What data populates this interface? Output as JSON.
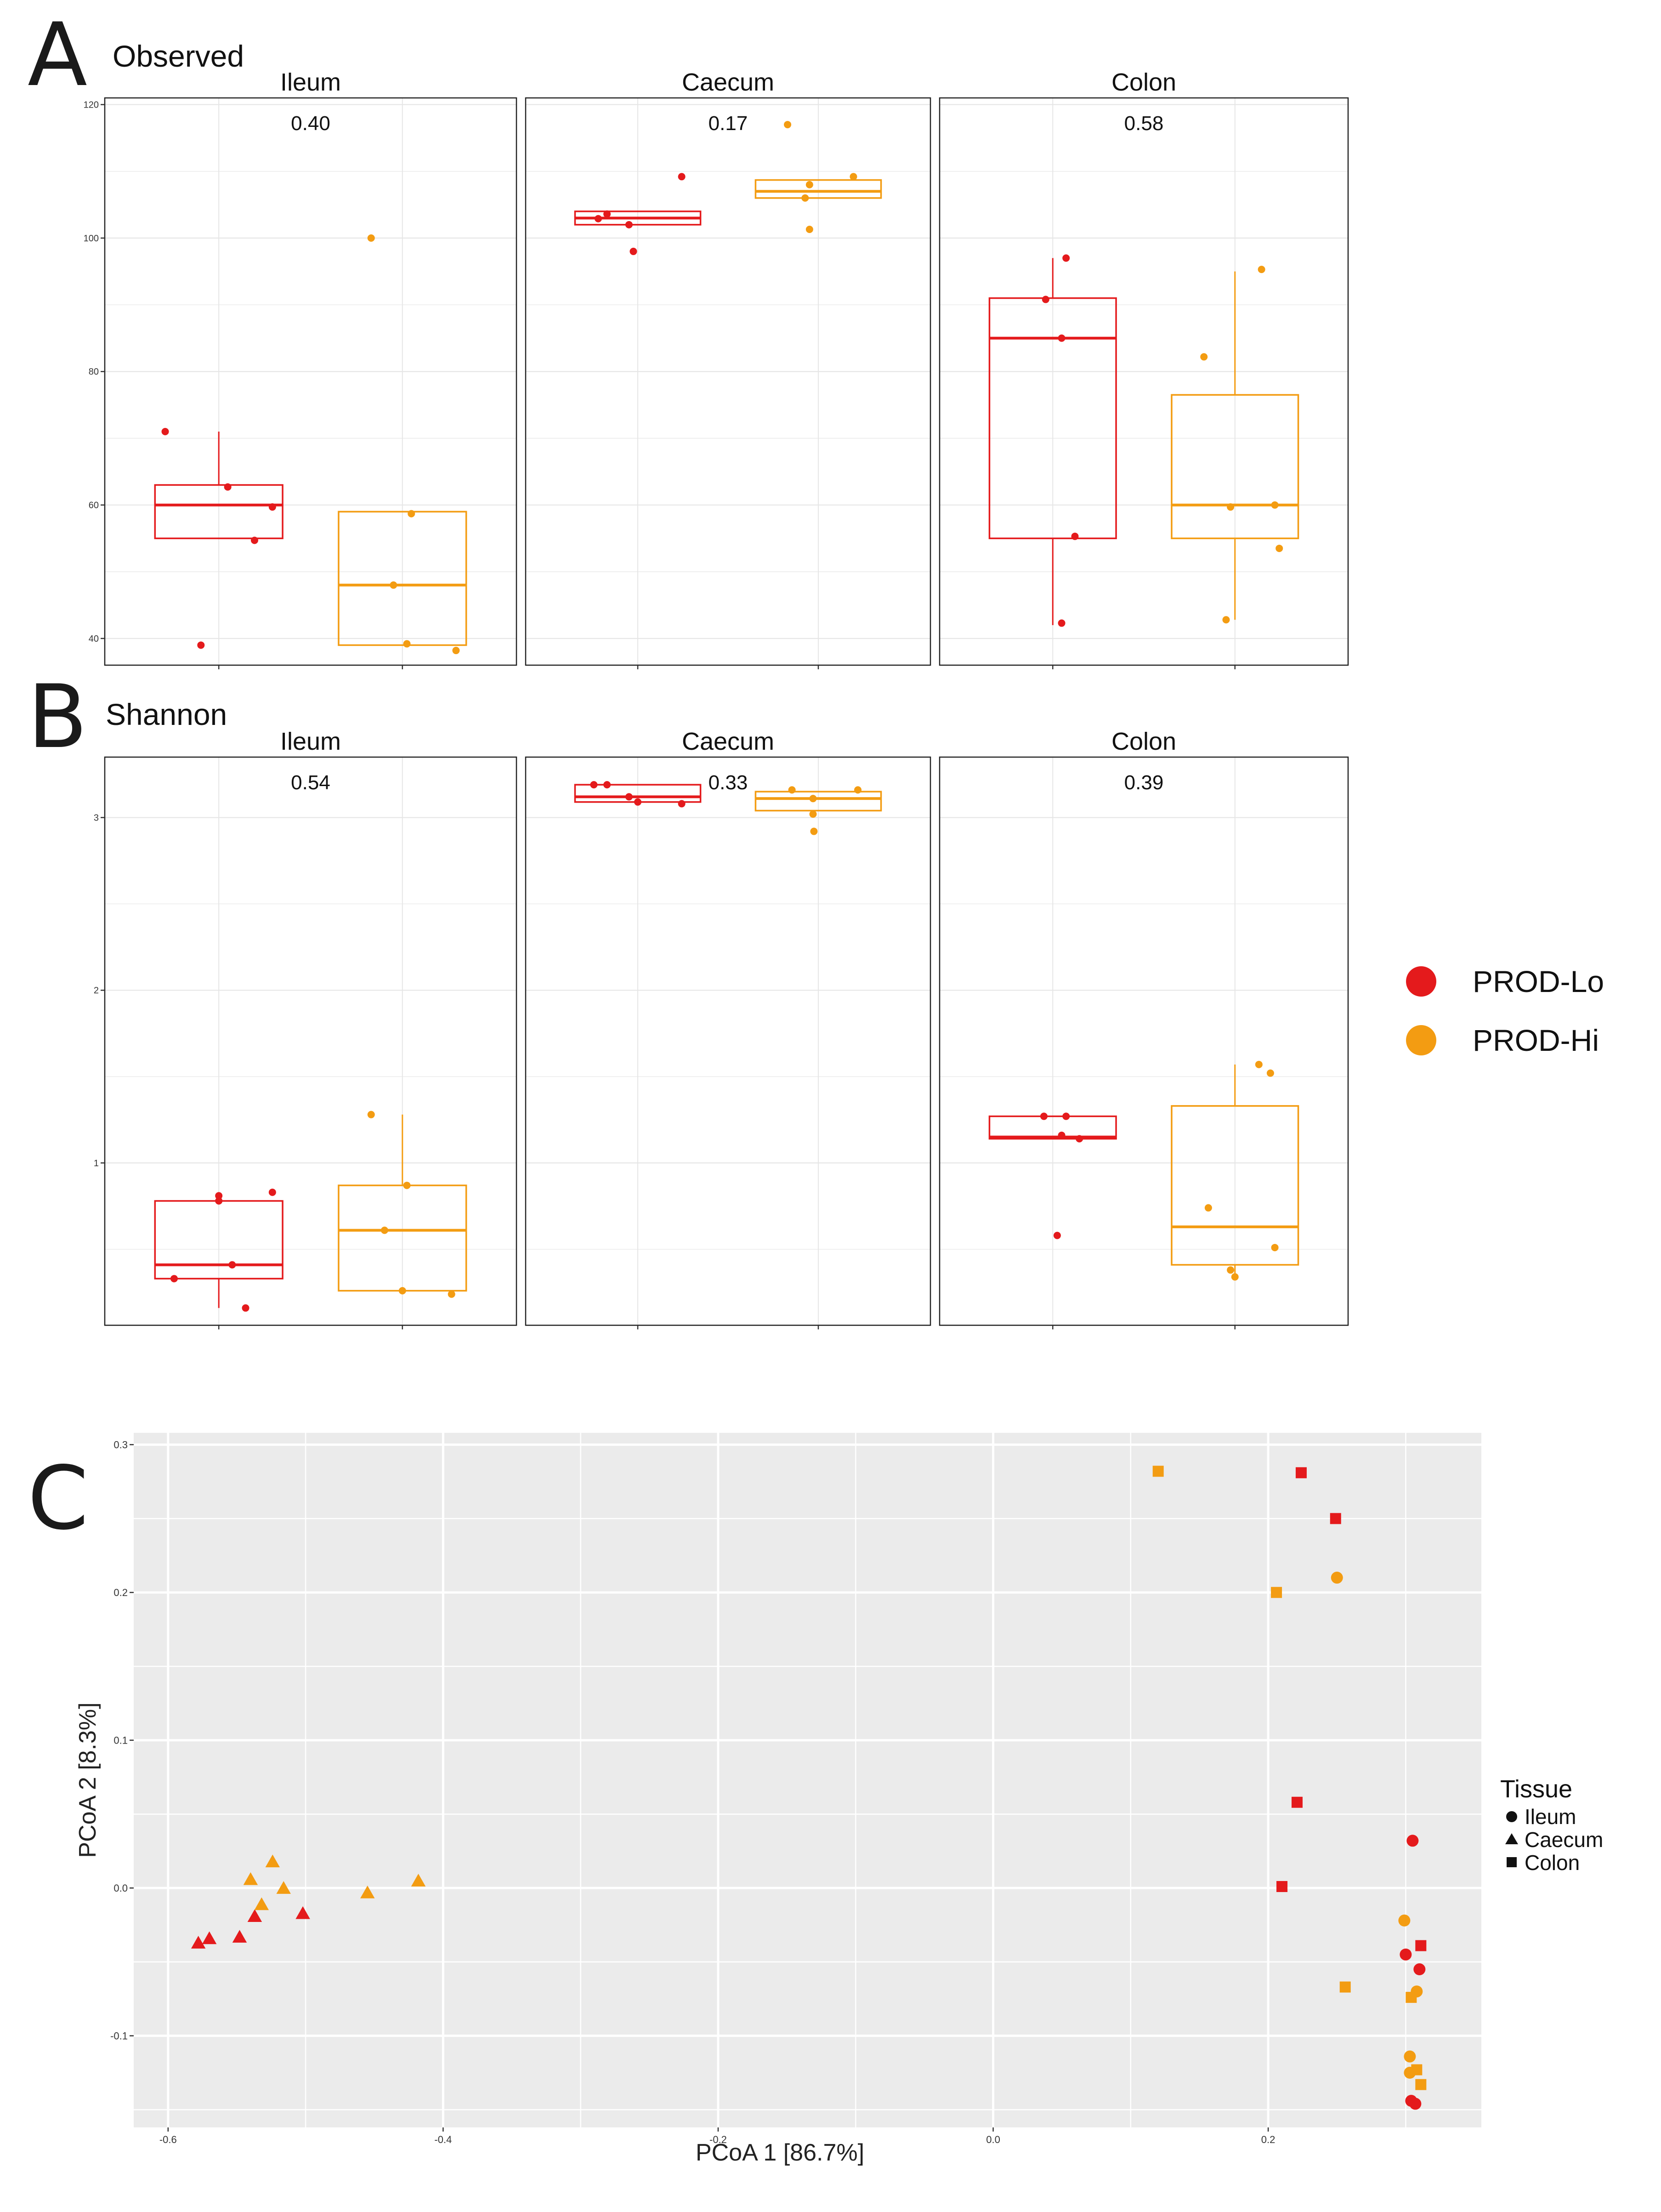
{
  "colors": {
    "lo": "#e41a1c",
    "hi": "#f39c12",
    "panel_bg": "#ebebeb",
    "grid": "#e6e6e6"
  },
  "panel_labels": {
    "a": "A",
    "b": "B",
    "c": "C"
  },
  "legend_groups": {
    "lo": "PROD-Lo",
    "hi": "PROD-Hi"
  },
  "legend_tissue": {
    "title": "Tissue",
    "ileum": "Ileum",
    "caecum": "Caecum",
    "colon": "Colon"
  },
  "chart_data": [
    {
      "type": "box",
      "id": "A",
      "title": "Observed",
      "facets": [
        "Ileum",
        "Caecum",
        "Colon"
      ],
      "pvalues": [
        "0.40",
        "0.17",
        "0.58"
      ],
      "groups": [
        "PROD-Lo",
        "PROD-Hi"
      ],
      "ylim": [
        36,
        121
      ],
      "yticks": [
        40,
        60,
        80,
        100,
        120
      ],
      "boxes": [
        [
          {
            "q1": 55,
            "median": 60,
            "q3": 63,
            "wlo": 55,
            "whi": 71,
            "points": [
              71,
              62.7,
              59.7,
              54.7,
              39
            ]
          },
          {
            "q1": 39,
            "median": 48,
            "q3": 59,
            "wlo": 39,
            "whi": 59,
            "points": [
              100,
              58.7,
              48,
              39.2,
              38.2
            ]
          }
        ],
        [
          {
            "q1": 102,
            "median": 103,
            "q3": 104,
            "wlo": 102,
            "whi": 104,
            "points": [
              109.2,
              103.6,
              102.9,
              102,
              98
            ]
          },
          {
            "q1": 106,
            "median": 107,
            "q3": 108.7,
            "wlo": 106,
            "whi": 108.7,
            "points": [
              117,
              109.2,
              108,
              106,
              101.3
            ]
          }
        ],
        [
          {
            "q1": 55,
            "median": 85,
            "q3": 91,
            "wlo": 42,
            "whi": 97,
            "points": [
              97,
              90.8,
              85,
              55.3,
              42.3
            ]
          },
          {
            "q1": 55,
            "median": 60,
            "q3": 76.5,
            "wlo": 42.8,
            "whi": 95,
            "points": [
              95.3,
              82.2,
              60,
              59.7,
              53.5,
              42.8
            ]
          }
        ]
      ],
      "point_dx": [
        [
          [
            -0.6,
            0.1,
            0.6,
            0.4,
            -0.2
          ],
          [
            -0.35,
            0.1,
            -0.1,
            0.05,
            0.6
          ]
        ],
        [
          [
            0.5,
            -0.35,
            -0.45,
            -0.1,
            -0.05
          ],
          [
            -0.35,
            0.4,
            -0.1,
            -0.15,
            -0.1
          ]
        ],
        [
          [
            0.15,
            -0.08,
            0.1,
            0.25,
            0.1
          ],
          [
            0.3,
            -0.35,
            0.45,
            -0.05,
            0.5,
            -0.1
          ]
        ]
      ]
    },
    {
      "type": "box",
      "id": "B",
      "title": "Shannon",
      "facets": [
        "Ileum",
        "Caecum",
        "Colon"
      ],
      "pvalues": [
        "0.54",
        "0.33",
        "0.39"
      ],
      "groups": [
        "PROD-Lo",
        "PROD-Hi"
      ],
      "ylim": [
        0.06,
        3.35
      ],
      "yticks": [
        1,
        2,
        3
      ],
      "ytick_labels": [
        "1",
        "2",
        "3"
      ],
      "boxes": [
        [
          {
            "q1": 0.33,
            "median": 0.41,
            "q3": 0.78,
            "wlo": 0.16,
            "whi": 0.82,
            "points": [
              0.83,
              0.81,
              0.78,
              0.41,
              0.33,
              0.16
            ]
          },
          {
            "q1": 0.26,
            "median": 0.61,
            "q3": 0.87,
            "wlo": 0.26,
            "whi": 1.28,
            "points": [
              1.28,
              0.87,
              0.61,
              0.26,
              0.24
            ]
          }
        ],
        [
          {
            "q1": 3.09,
            "median": 3.12,
            "q3": 3.19,
            "wlo": 3.09,
            "whi": 3.19,
            "points": [
              3.19,
              3.19,
              3.12,
              3.09,
              3.08
            ]
          },
          {
            "q1": 3.04,
            "median": 3.11,
            "q3": 3.15,
            "wlo": 3.04,
            "whi": 3.15,
            "points": [
              3.16,
              3.16,
              3.11,
              3.02,
              2.92
            ]
          }
        ],
        [
          {
            "q1": 1.14,
            "median": 1.15,
            "q3": 1.27,
            "wlo": 1.14,
            "whi": 1.27,
            "points": [
              1.27,
              1.27,
              1.16,
              1.14,
              0.58
            ]
          },
          {
            "q1": 0.41,
            "median": 0.63,
            "q3": 1.33,
            "wlo": 0.34,
            "whi": 1.57,
            "points": [
              1.57,
              1.52,
              0.74,
              0.51,
              0.38,
              0.34
            ]
          }
        ]
      ],
      "point_dx": [
        [
          [
            0.6,
            0.0,
            0.0,
            0.15,
            -0.5,
            0.3
          ],
          [
            -0.35,
            0.05,
            -0.2,
            0.0,
            0.55
          ]
        ],
        [
          [
            -0.35,
            -0.5,
            -0.1,
            0.0,
            0.5
          ],
          [
            0.45,
            -0.3,
            -0.06,
            -0.06,
            -0.05
          ]
        ],
        [
          [
            -0.1,
            0.15,
            0.1,
            0.3,
            0.05
          ],
          [
            0.27,
            0.4,
            -0.3,
            0.45,
            -0.05,
            0.0
          ]
        ]
      ]
    },
    {
      "type": "scatter",
      "id": "C",
      "xlabel": "PCoA 1   [86.7%]",
      "ylabel": "PCoA 2   [8.3%]",
      "xlim": [
        -0.625,
        0.355
      ],
      "ylim": [
        -0.162,
        0.308
      ],
      "xticks": [
        -0.6,
        -0.4,
        -0.2,
        0.0,
        0.2
      ],
      "yticks": [
        -0.1,
        0.0,
        0.1,
        0.2,
        0.3
      ],
      "xtick_labels": [
        "-0.6",
        "-0.4",
        "-0.2",
        "0.0",
        "0.2"
      ],
      "ytick_labels": [
        "-0.1",
        "0.0",
        "0.1",
        "0.2",
        "0.3"
      ],
      "points": [
        {
          "x": -0.578,
          "y": -0.037,
          "group": "PROD-Lo",
          "tissue": "Caecum"
        },
        {
          "x": -0.57,
          "y": -0.034,
          "group": "PROD-Lo",
          "tissue": "Caecum"
        },
        {
          "x": -0.548,
          "y": -0.033,
          "group": "PROD-Lo",
          "tissue": "Caecum"
        },
        {
          "x": -0.537,
          "y": -0.019,
          "group": "PROD-Lo",
          "tissue": "Caecum"
        },
        {
          "x": -0.502,
          "y": -0.017,
          "group": "PROD-Lo",
          "tissue": "Caecum"
        },
        {
          "x": -0.54,
          "y": 0.006,
          "group": "PROD-Hi",
          "tissue": "Caecum"
        },
        {
          "x": -0.532,
          "y": -0.011,
          "group": "PROD-Hi",
          "tissue": "Caecum"
        },
        {
          "x": -0.524,
          "y": 0.018,
          "group": "PROD-Hi",
          "tissue": "Caecum"
        },
        {
          "x": -0.516,
          "y": 0.0,
          "group": "PROD-Hi",
          "tissue": "Caecum"
        },
        {
          "x": -0.455,
          "y": -0.003,
          "group": "PROD-Hi",
          "tissue": "Caecum"
        },
        {
          "x": -0.418,
          "y": 0.005,
          "group": "PROD-Hi",
          "tissue": "Caecum"
        },
        {
          "x": 0.12,
          "y": 0.282,
          "group": "PROD-Hi",
          "tissue": "Colon"
        },
        {
          "x": 0.224,
          "y": 0.281,
          "group": "PROD-Lo",
          "tissue": "Colon"
        },
        {
          "x": 0.249,
          "y": 0.25,
          "group": "PROD-Lo",
          "tissue": "Colon"
        },
        {
          "x": 0.206,
          "y": 0.2,
          "group": "PROD-Hi",
          "tissue": "Colon"
        },
        {
          "x": 0.25,
          "y": 0.21,
          "group": "PROD-Hi",
          "tissue": "Ileum"
        },
        {
          "x": 0.221,
          "y": 0.058,
          "group": "PROD-Lo",
          "tissue": "Colon"
        },
        {
          "x": 0.21,
          "y": 0.001,
          "group": "PROD-Lo",
          "tissue": "Colon"
        },
        {
          "x": 0.305,
          "y": 0.032,
          "group": "PROD-Lo",
          "tissue": "Ileum"
        },
        {
          "x": 0.299,
          "y": -0.022,
          "group": "PROD-Hi",
          "tissue": "Ileum"
        },
        {
          "x": 0.311,
          "y": -0.039,
          "group": "PROD-Lo",
          "tissue": "Colon"
        },
        {
          "x": 0.3,
          "y": -0.045,
          "group": "PROD-Lo",
          "tissue": "Ileum"
        },
        {
          "x": 0.31,
          "y": -0.055,
          "group": "PROD-Lo",
          "tissue": "Ileum"
        },
        {
          "x": 0.256,
          "y": -0.067,
          "group": "PROD-Hi",
          "tissue": "Colon"
        },
        {
          "x": 0.308,
          "y": -0.07,
          "group": "PROD-Hi",
          "tissue": "Ileum"
        },
        {
          "x": 0.304,
          "y": -0.074,
          "group": "PROD-Hi",
          "tissue": "Colon"
        },
        {
          "x": 0.303,
          "y": -0.114,
          "group": "PROD-Hi",
          "tissue": "Ileum"
        },
        {
          "x": 0.303,
          "y": -0.125,
          "group": "PROD-Hi",
          "tissue": "Ileum"
        },
        {
          "x": 0.308,
          "y": -0.123,
          "group": "PROD-Hi",
          "tissue": "Colon"
        },
        {
          "x": 0.311,
          "y": -0.133,
          "group": "PROD-Hi",
          "tissue": "Colon"
        },
        {
          "x": 0.304,
          "y": -0.144,
          "group": "PROD-Lo",
          "tissue": "Ileum"
        },
        {
          "x": 0.307,
          "y": -0.146,
          "group": "PROD-Lo",
          "tissue": "Ileum"
        }
      ]
    }
  ]
}
